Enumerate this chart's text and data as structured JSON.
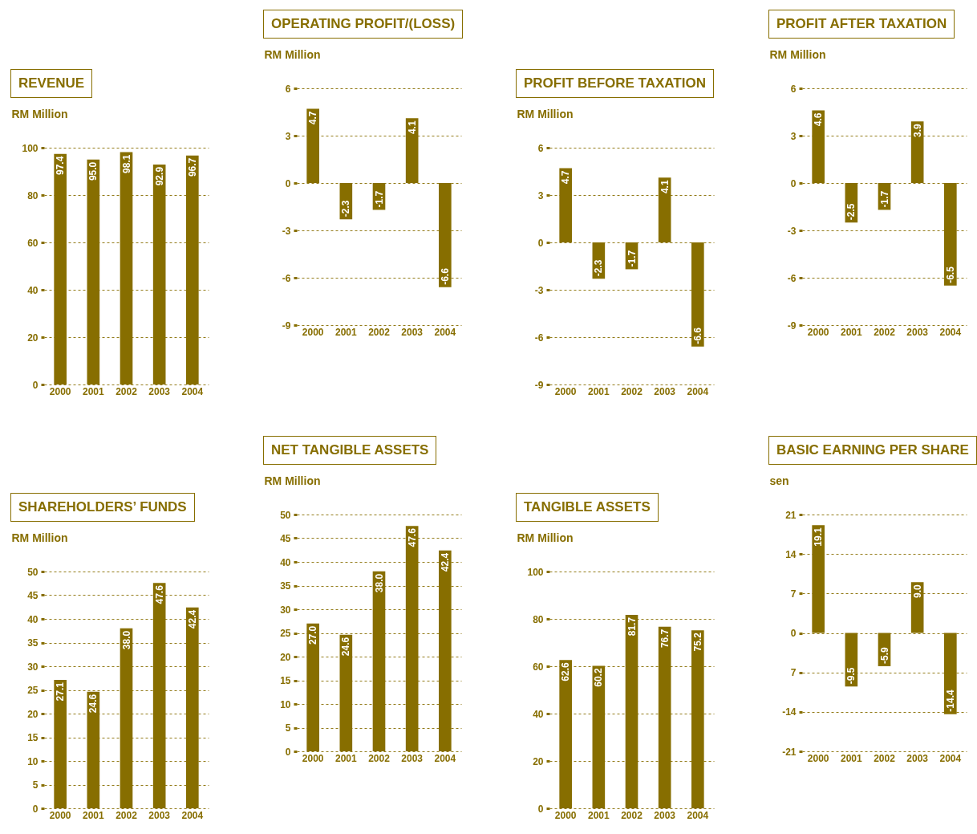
{
  "chart_data": [
    {
      "type": "bar",
      "title": "REVENUE",
      "ylabel": "RM Million",
      "categories": [
        "2000",
        "2001",
        "2002",
        "2003",
        "2004"
      ],
      "values": [
        97.4,
        95.0,
        98.1,
        92.9,
        96.7
      ],
      "value_labels": [
        "97.4",
        "95.0",
        "98.1",
        "92.9",
        "96.7"
      ],
      "color": "#876e00",
      "ylim": [
        0,
        100
      ],
      "yticks": [
        0,
        20,
        40,
        60,
        80,
        100
      ],
      "grid": "y"
    },
    {
      "type": "bar",
      "title": "OPERATING PROFIT/(LOSS)",
      "ylabel": "RM Million",
      "categories": [
        "2000",
        "2001",
        "2002",
        "2003",
        "2004"
      ],
      "values": [
        4.7,
        -2.3,
        -1.7,
        4.1,
        -6.6
      ],
      "value_labels": [
        "4.7",
        "-2.3",
        "-1.7",
        "4.1",
        "-6.6"
      ],
      "color": "#876e00",
      "ylim": [
        -9,
        6
      ],
      "yticks": [
        -9,
        -6,
        -3,
        0,
        3,
        6
      ],
      "grid": "y"
    },
    {
      "type": "bar",
      "title": "PROFIT BEFORE TAXATION",
      "ylabel": "RM Million",
      "categories": [
        "2000",
        "2001",
        "2002",
        "2003",
        "2004"
      ],
      "values": [
        4.7,
        -2.3,
        -1.7,
        4.1,
        -6.6
      ],
      "value_labels": [
        "4.7",
        "-2.3",
        "-1.7",
        "4.1",
        "-6.6"
      ],
      "color": "#876e00",
      "ylim": [
        -9,
        6
      ],
      "yticks": [
        -9,
        -6,
        -3,
        0,
        3,
        6
      ],
      "grid": "y"
    },
    {
      "type": "bar",
      "title": "PROFIT AFTER TAXATION",
      "ylabel": "RM Million",
      "categories": [
        "2000",
        "2001",
        "2002",
        "2003",
        "2004"
      ],
      "values": [
        4.6,
        -2.5,
        -1.7,
        3.9,
        -6.5
      ],
      "value_labels": [
        "4.6",
        "-2.5",
        "-1.7",
        "3.9",
        "-6.5"
      ],
      "color": "#876e00",
      "ylim": [
        -9,
        6
      ],
      "yticks": [
        -9,
        -6,
        -3,
        0,
        3,
        6
      ],
      "grid": "y"
    },
    {
      "type": "bar",
      "title": "SHAREHOLDERS’ FUNDS",
      "ylabel": "RM Million",
      "categories": [
        "2000",
        "2001",
        "2002",
        "2003",
        "2004"
      ],
      "values": [
        27.1,
        24.6,
        38.0,
        47.6,
        42.4
      ],
      "value_labels": [
        "27.1",
        "24.6",
        "38.0",
        "47.6",
        "42.4"
      ],
      "color": "#876e00",
      "ylim": [
        0,
        50
      ],
      "yticks": [
        0,
        5,
        10,
        15,
        20,
        25,
        30,
        35,
        40,
        45,
        50
      ],
      "grid": "y"
    },
    {
      "type": "bar",
      "title": "NET TANGIBLE ASSETS",
      "ylabel": "RM Million",
      "categories": [
        "2000",
        "2001",
        "2002",
        "2003",
        "2004"
      ],
      "values": [
        27.0,
        24.6,
        38.0,
        47.6,
        42.4
      ],
      "value_labels": [
        "27.0",
        "24.6",
        "38.0",
        "47.6",
        "42.4"
      ],
      "color": "#876e00",
      "ylim": [
        0,
        50
      ],
      "yticks": [
        0,
        5,
        10,
        15,
        20,
        25,
        30,
        35,
        40,
        45,
        50
      ],
      "grid": "y"
    },
    {
      "type": "bar",
      "title": "TANGIBLE ASSETS",
      "ylabel": "RM Million",
      "categories": [
        "2000",
        "2001",
        "2002",
        "2003",
        "2004"
      ],
      "values": [
        62.6,
        60.2,
        81.7,
        76.7,
        75.2
      ],
      "value_labels": [
        "62.6",
        "60.2",
        "81.7",
        "76.7",
        "75.2"
      ],
      "color": "#876e00",
      "ylim": [
        0,
        100
      ],
      "yticks": [
        0,
        20,
        40,
        60,
        80,
        100
      ],
      "grid": "y"
    },
    {
      "type": "bar",
      "title": "BASIC EARNING PER SHARE",
      "ylabel": "sen",
      "categories": [
        "2000",
        "2001",
        "2002",
        "2003",
        "2004"
      ],
      "values": [
        19.1,
        -9.5,
        -5.9,
        9.0,
        -14.4
      ],
      "value_labels": [
        "19.1",
        "-9.5",
        "-5.9",
        "9.0",
        "-14.4"
      ],
      "color": "#876e00",
      "ylim": [
        -21,
        21
      ],
      "yticks": [
        -21,
        -14,
        {
          "value": -7,
          "label": "7"
        },
        0,
        7,
        14,
        21
      ],
      "grid": "y"
    }
  ]
}
